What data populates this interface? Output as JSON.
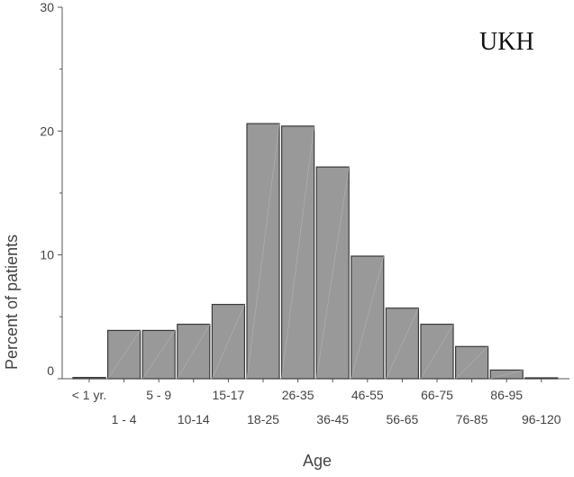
{
  "chart_data": {
    "type": "bar",
    "categories": [
      "< 1 yr.",
      "1 - 4",
      "5 - 9",
      "10-14",
      "15-17",
      "18-25",
      "26-35",
      "36-45",
      "46-55",
      "56-65",
      "66-75",
      "76-85",
      "86-95",
      "96-120"
    ],
    "values": [
      0.1,
      3.9,
      3.9,
      4.4,
      6.0,
      20.6,
      20.4,
      17.1,
      9.9,
      5.7,
      4.4,
      2.6,
      0.7,
      0.05
    ],
    "xlabel": "Age",
    "ylabel": "Percent of patients",
    "ylim": [
      0,
      30
    ],
    "yticks": [
      0,
      10,
      20,
      30
    ],
    "annotation": "UKH",
    "grid": false,
    "colors": {
      "bar_fill": "#999999",
      "bar_stroke": "#3a3a3a",
      "axis": "#555555"
    }
  }
}
